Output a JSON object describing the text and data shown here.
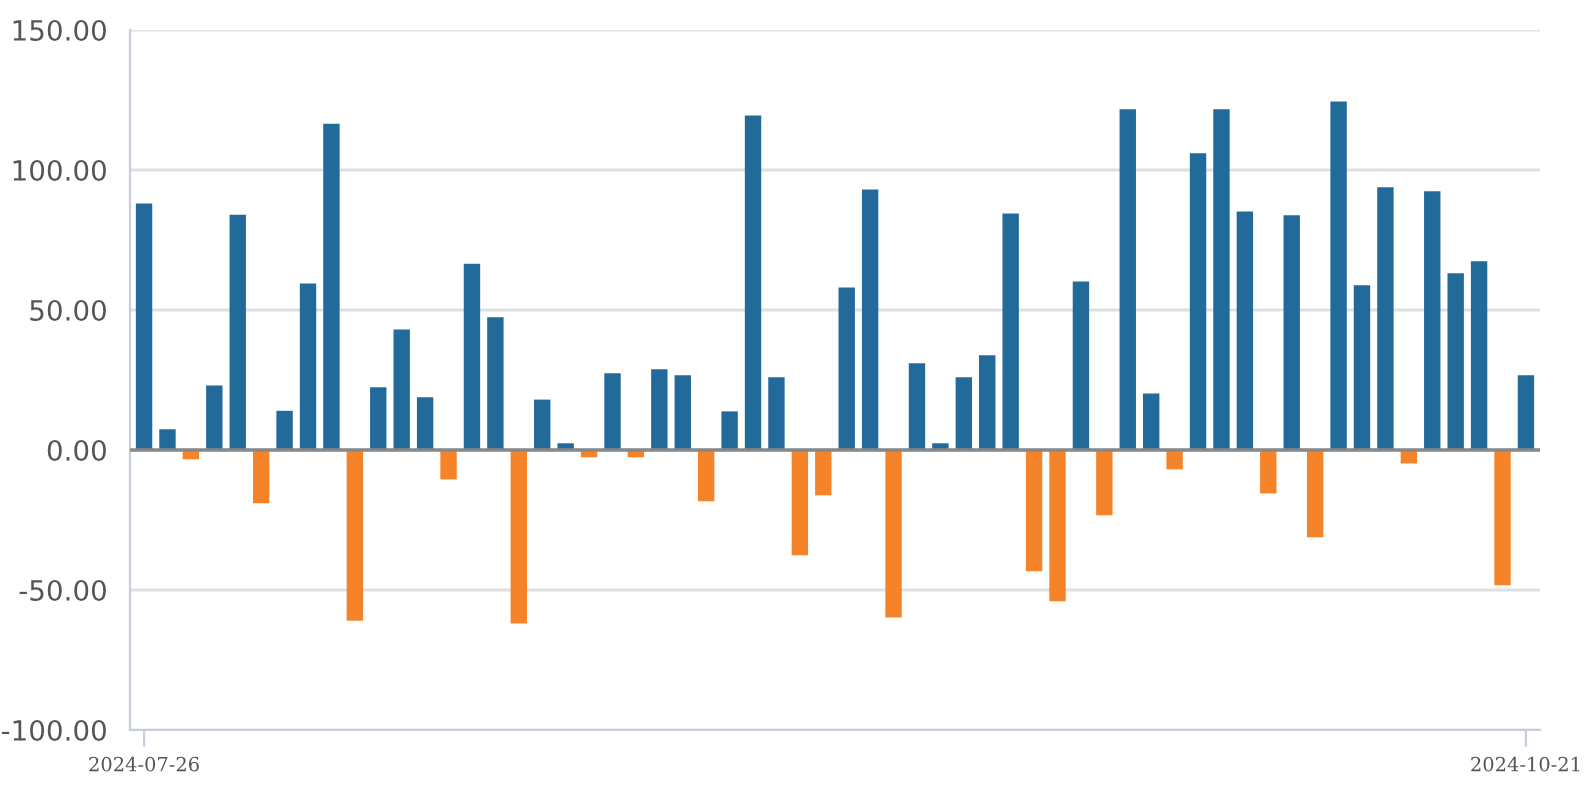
{
  "chart_data": {
    "type": "bar",
    "categories": [
      "2024-07-26",
      null,
      null,
      null,
      null,
      null,
      null,
      null,
      null,
      null,
      null,
      null,
      null,
      null,
      null,
      null,
      null,
      null,
      null,
      null,
      null,
      null,
      null,
      null,
      null,
      null,
      null,
      null,
      null,
      null,
      null,
      null,
      null,
      null,
      null,
      null,
      null,
      null,
      null,
      null,
      null,
      null,
      null,
      null,
      null,
      null,
      null,
      null,
      null,
      null,
      null,
      null,
      null,
      null,
      null,
      null,
      null,
      null,
      null,
      "2024-10-21"
    ],
    "values": [
      88,
      7.4,
      -3.3,
      23,
      84,
      -19,
      14,
      59.5,
      116.5,
      -61,
      22.4,
      43,
      18.8,
      -10.5,
      66.5,
      47.4,
      -62,
      18,
      2.4,
      -2.6,
      27.4,
      -2.6,
      28.8,
      26.7,
      -18.3,
      13.8,
      119.5,
      26,
      -37.6,
      -16.2,
      58,
      93,
      -59.8,
      31,
      2.4,
      26,
      33.8,
      84.5,
      -43.3,
      -54,
      60.2,
      -23.3,
      121.7,
      20.2,
      -6.9,
      106,
      121.7,
      85.2,
      -15.5,
      83.8,
      -31.2,
      124.5,
      58.8,
      93.8,
      -4.8,
      92.4,
      63.1,
      67.4,
      -48.3,
      26.7
    ],
    "colors": [
      "#216a9a",
      "#216a9a",
      "#f5832a",
      "#216a9a",
      "#216a9a",
      "#f5832a",
      "#216a9a",
      "#216a9a",
      "#216a9a",
      "#f5832a",
      "#216a9a",
      "#216a9a",
      "#216a9a",
      "#f5832a",
      "#216a9a",
      "#216a9a",
      "#f5832a",
      "#216a9a",
      "#216a9a",
      "#f5832a",
      "#216a9a",
      "#f5832a",
      "#216a9a",
      "#216a9a",
      "#f5832a",
      "#216a9a",
      "#216a9a",
      "#216a9a",
      "#f5832a",
      "#f5832a",
      "#216a9a",
      "#216a9a",
      "#f5832a",
      "#216a9a",
      "#216a9a",
      "#216a9a",
      "#216a9a",
      "#216a9a",
      "#f5832a",
      "#f5832a",
      "#216a9a",
      "#f5832a",
      "#216a9a",
      "#216a9a",
      "#f5832a",
      "#216a9a",
      "#216a9a",
      "#216a9a",
      "#f5832a",
      "#216a9a",
      "#f5832a",
      "#216a9a",
      "#216a9a",
      "#216a9a",
      "#f5832a",
      "#216a9a",
      "#216a9a",
      "#216a9a",
      "#f5832a",
      "#216a9a"
    ],
    "ylim": [
      -100,
      150
    ],
    "yticks": [
      {
        "value": -100,
        "label": "-100.00"
      },
      {
        "value": -50,
        "label": "-50.00"
      },
      {
        "value": 0,
        "label": "0.00"
      },
      {
        "value": 50,
        "label": "50.00"
      },
      {
        "value": 100,
        "label": "100.00"
      },
      {
        "value": 150,
        "label": "150.00"
      }
    ],
    "grid": "y",
    "ref_lines": [
      {
        "axis": "y",
        "value": 0,
        "color": "#888888"
      }
    ]
  }
}
